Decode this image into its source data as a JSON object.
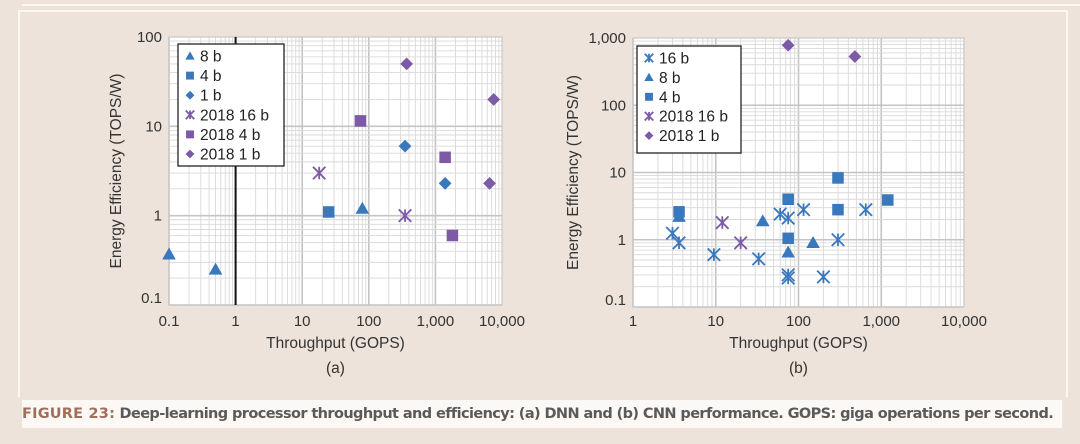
{
  "figure": {
    "label": "FIGURE 23:",
    "caption": " Deep-learning processor throughput and efficiency: (a) DNN and (b) CNN performance. GOPS: giga operations per second."
  },
  "colors": {
    "blue": "#3a78bd",
    "purple": "#7c5aa6",
    "grid": "#d2d2d2",
    "axis_text": "#333333",
    "background": "#ede3da"
  },
  "chart_data": [
    {
      "id": "a",
      "type": "scatter",
      "panel_label": "(a)",
      "title": "",
      "xlabel": "Throughput (GOPS)",
      "ylabel": "Energy Efficiency (TOPS/W)",
      "xscale": "log",
      "yscale": "log",
      "xlim": [
        0.1,
        10000
      ],
      "ylim": [
        0.1,
        100
      ],
      "xticks": [
        0.1,
        1,
        10,
        100,
        1000,
        10000
      ],
      "xtick_labels": [
        "0.1",
        "1",
        "10",
        "100",
        "1,000",
        "10,000"
      ],
      "yticks": [
        0.1,
        1,
        10,
        100
      ],
      "ytick_labels": [
        "0.1",
        "1",
        "10",
        "100"
      ],
      "grid": true,
      "highlight_vline": 1,
      "legend_position": "top-left",
      "series": [
        {
          "name": "8 b",
          "marker": "triangle",
          "color": "blue",
          "points": [
            [
              0.1,
              0.37
            ],
            [
              0.5,
              0.25
            ],
            [
              80,
              1.2
            ]
          ]
        },
        {
          "name": "4 b",
          "marker": "square",
          "color": "blue",
          "points": [
            [
              25,
              1.1
            ]
          ]
        },
        {
          "name": "1 b",
          "marker": "diamond",
          "color": "blue",
          "points": [
            [
              350,
              6.0
            ],
            [
              1400,
              2.3
            ]
          ]
        },
        {
          "name": "2018 16 b",
          "marker": "asterisk",
          "color": "purple",
          "points": [
            [
              18,
              3.0
            ],
            [
              350,
              1.0
            ]
          ]
        },
        {
          "name": "2018 4 b",
          "marker": "square",
          "color": "purple",
          "points": [
            [
              75,
              11.5
            ],
            [
              1400,
              4.5
            ],
            [
              1800,
              0.6
            ]
          ]
        },
        {
          "name": "2018 1 b",
          "marker": "diamond",
          "color": "purple",
          "points": [
            [
              370,
              50
            ],
            [
              7500,
              20
            ],
            [
              6500,
              2.3
            ]
          ]
        }
      ]
    },
    {
      "id": "b",
      "type": "scatter",
      "panel_label": "(b)",
      "title": "",
      "xlabel": "Throughput (GOPS)",
      "ylabel": "Energy Efficiency (TOPS/W)",
      "xscale": "log",
      "yscale": "log",
      "xlim": [
        1,
        10000
      ],
      "ylim": [
        0.1,
        1000
      ],
      "xticks": [
        1,
        10,
        100,
        1000,
        10000
      ],
      "xtick_labels": [
        "1",
        "10",
        "100",
        "1,000",
        "10,000"
      ],
      "yticks": [
        0.1,
        1,
        10,
        100,
        1000
      ],
      "ytick_labels": [
        "0.1",
        "1",
        "10",
        "100",
        "1,000"
      ],
      "grid": true,
      "legend_position": "top-left",
      "series": [
        {
          "name": "16 b",
          "marker": "asterisk",
          "color": "blue",
          "points": [
            [
              3,
              1.25
            ],
            [
              3.6,
              0.9
            ],
            [
              9.5,
              0.6
            ],
            [
              33,
              0.52
            ],
            [
              60,
              2.4
            ],
            [
              75,
              2.1
            ],
            [
              75,
              0.3
            ],
            [
              75,
              0.27
            ],
            [
              115,
              2.8
            ],
            [
              200,
              0.28
            ],
            [
              300,
              1.0
            ],
            [
              650,
              2.8
            ]
          ]
        },
        {
          "name": "8 b",
          "marker": "triangle",
          "color": "blue",
          "points": [
            [
              3.6,
              2.2
            ],
            [
              37,
              1.9
            ],
            [
              75,
              0.65
            ],
            [
              150,
              0.9
            ]
          ]
        },
        {
          "name": "4 b",
          "marker": "square",
          "color": "blue",
          "points": [
            [
              3.6,
              2.6
            ],
            [
              75,
              4.0
            ],
            [
              75,
              1.05
            ],
            [
              300,
              8.3
            ],
            [
              300,
              2.8
            ],
            [
              1200,
              3.9
            ]
          ]
        },
        {
          "name": "2018 16 b",
          "marker": "asterisk",
          "color": "purple",
          "points": [
            [
              12,
              1.8
            ],
            [
              20,
              0.9
            ]
          ]
        },
        {
          "name": "2018 1 b",
          "marker": "diamond",
          "color": "purple",
          "points": [
            [
              75,
              780
            ],
            [
              480,
              530
            ]
          ]
        }
      ]
    }
  ]
}
